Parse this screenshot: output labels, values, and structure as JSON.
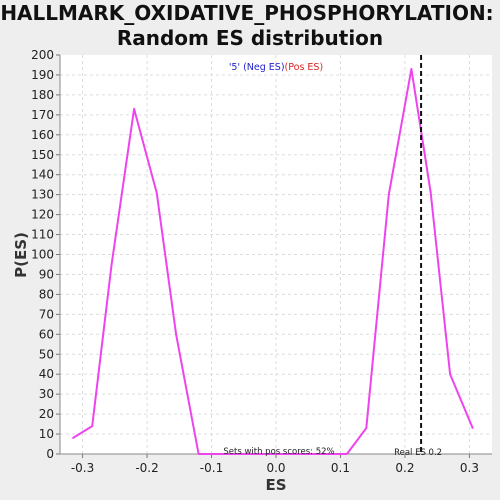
{
  "chart_data": {
    "type": "line",
    "title_line1": "HALLMARK_OXIDATIVE_PHOSPHORYLATION:",
    "title_line2": "Random ES distribution",
    "xlabel": "ES",
    "ylabel": "P(ES)",
    "xlim": [
      -0.335,
      0.335
    ],
    "ylim": [
      0,
      200
    ],
    "xticks": [
      -0.3,
      -0.2,
      -0.1,
      0,
      0.1,
      0.2,
      0.3
    ],
    "xtick_labels": [
      "-0.3",
      "-0.2",
      "-0.1",
      "0.0",
      "0.1",
      "0.2",
      "0.3"
    ],
    "yticks": [
      0,
      10,
      20,
      30,
      40,
      50,
      60,
      70,
      80,
      90,
      100,
      110,
      120,
      130,
      140,
      150,
      160,
      170,
      180,
      190,
      200
    ],
    "grid": true,
    "series": [
      {
        "color": "#ee44ee",
        "x": [
          -0.315,
          -0.285,
          -0.255,
          -0.22,
          -0.185,
          -0.155,
          -0.12,
          -0.1,
          0.11,
          0.14,
          0.175,
          0.21,
          0.24,
          0.27,
          0.305
        ],
        "y": [
          8,
          14,
          95,
          173,
          131,
          60,
          0,
          0,
          0,
          13,
          130,
          193,
          131,
          40,
          13
        ]
      }
    ],
    "real_es": 0.225,
    "real_es_label": "Real ES 0.2",
    "legend": {
      "placement": "top-center",
      "neg_label": "'5' (Neg ES)",
      "neg_color": "#2222cc",
      "pos_label": "(Pos ES)",
      "pos_color": "#dd2222"
    },
    "annotation": "Sets with pos scores: 52%"
  }
}
